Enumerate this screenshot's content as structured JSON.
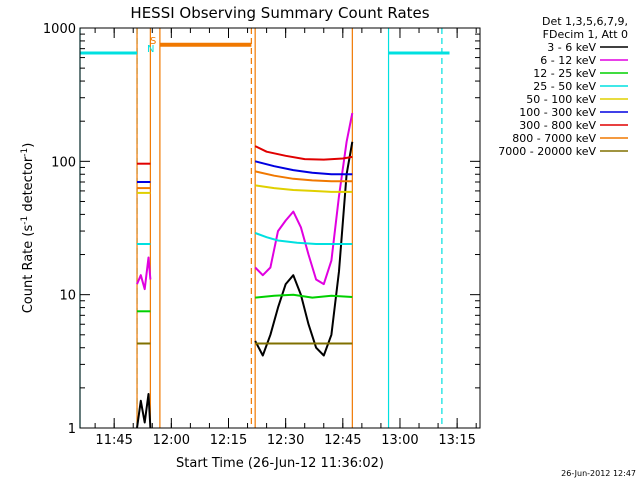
{
  "chart_data": {
    "type": "line",
    "title": "HESSI Observing Summary Count Rates",
    "xlabel": "Start Time (26-Jun-12 11:36:02)",
    "ylabel": "Count Rate (s⁻¹ detector⁻¹)",
    "ylabel_main": "Count Rate (s",
    "ylabel_sup1": "-1",
    "ylabel_mid": " detector",
    "ylabel_sup2": "-1",
    "ylabel_end": ")",
    "yscale": "log",
    "ylim": [
      1,
      1000
    ],
    "xlim": [
      "11:36:02",
      "13:21:00"
    ],
    "x_ticks": [
      "11:45",
      "12:00",
      "12:15",
      "12:30",
      "12:45",
      "13:00",
      "13:15"
    ],
    "y_ticks": [
      "1",
      "10",
      "100",
      "1000"
    ],
    "grid": false,
    "legend_header": [
      "Det 1,3,5,6,7,9,",
      "FDecim 1, Att 0"
    ],
    "legend_position": "right",
    "footer_date": "26-Jun-2012 12:47",
    "flag_labels": {
      "s": "S",
      "n": "N"
    },
    "series": [
      {
        "name": "3 - 6 keV",
        "color": "#000000",
        "segments": [
          {
            "x": [
              "11:51:00",
              "11:52:00",
              "11:53:00",
              "11:54:00",
              "11:54:30"
            ],
            "y": [
              1.0,
              1.6,
              1.1,
              1.8,
              1.0
            ]
          },
          {
            "x": [
              "12:22:00",
              "12:24:00",
              "12:26:00",
              "12:28:00",
              "12:30:00",
              "12:32:00",
              "12:34:00",
              "12:36:00",
              "12:38:00",
              "12:40:00",
              "12:42:00",
              "12:44:00",
              "12:46:00",
              "12:47:30"
            ],
            "y": [
              4.5,
              3.5,
              5.0,
              8.0,
              12.0,
              14.0,
              10.0,
              6.0,
              4.0,
              3.5,
              5.0,
              15.0,
              80.0,
              140.0
            ]
          }
        ]
      },
      {
        "name": "6 - 12 keV",
        "color": "#e000e0",
        "segments": [
          {
            "x": [
              "11:51:00",
              "11:52:00",
              "11:53:00",
              "11:54:00",
              "11:54:30"
            ],
            "y": [
              12.0,
              14.0,
              11.0,
              19.0,
              13.0
            ]
          },
          {
            "x": [
              "12:22:00",
              "12:24:00",
              "12:26:00",
              "12:28:00",
              "12:30:00",
              "12:32:00",
              "12:34:00",
              "12:36:00",
              "12:38:00",
              "12:40:00",
              "12:42:00",
              "12:44:00",
              "12:46:00",
              "12:47:30"
            ],
            "y": [
              16.0,
              14.0,
              16.0,
              30.0,
              36.0,
              42.0,
              32.0,
              20.0,
              13.0,
              12.0,
              18.0,
              55.0,
              140.0,
              230.0
            ]
          }
        ]
      },
      {
        "name": "12 - 25 keV",
        "color": "#00d000",
        "segments": [
          {
            "x": [
              "11:51:00",
              "11:52:30",
              "11:54:30"
            ],
            "y": [
              7.5,
              7.5,
              7.5
            ]
          },
          {
            "x": [
              "12:22:00",
              "12:27:00",
              "12:32:00",
              "12:37:00",
              "12:42:00",
              "12:47:30"
            ],
            "y": [
              9.5,
              9.8,
              10.0,
              9.5,
              9.8,
              9.6
            ]
          }
        ]
      },
      {
        "name": "25 - 50 keV",
        "color": "#00e0e0",
        "segments": [
          {
            "x": [
              "11:51:00",
              "11:52:30",
              "11:54:30"
            ],
            "y": [
              24.0,
              24.0,
              24.0
            ]
          },
          {
            "x": [
              "12:22:00",
              "12:25:00",
              "12:28:00",
              "12:33:00",
              "12:38:00",
              "12:43:00",
              "12:47:30"
            ],
            "y": [
              29.0,
              27.0,
              25.5,
              24.5,
              24.0,
              24.0,
              24.0
            ]
          }
        ]
      },
      {
        "name": "50 - 100 keV",
        "color": "#e0d000",
        "segments": [
          {
            "x": [
              "11:51:00",
              "11:52:30",
              "11:54:30"
            ],
            "y": [
              58.0,
              58.0,
              58.0
            ]
          },
          {
            "x": [
              "12:22:00",
              "12:27:00",
              "12:32:00",
              "12:37:00",
              "12:42:00",
              "12:47:30"
            ],
            "y": [
              66.0,
              63.0,
              61.0,
              60.0,
              59.0,
              59.0
            ]
          }
        ]
      },
      {
        "name": "100 - 300 keV",
        "color": "#0000e0",
        "segments": [
          {
            "x": [
              "11:51:00",
              "11:52:30",
              "11:54:30"
            ],
            "y": [
              70.0,
              70.0,
              70.0
            ]
          },
          {
            "x": [
              "12:22:00",
              "12:27:00",
              "12:32:00",
              "12:37:00",
              "12:42:00",
              "12:47:30"
            ],
            "y": [
              100.0,
              92.0,
              86.0,
              82.0,
              80.0,
              80.0
            ]
          }
        ]
      },
      {
        "name": "300 - 800 keV",
        "color": "#e00000",
        "segments": [
          {
            "x": [
              "11:51:00",
              "11:52:30",
              "11:54:30"
            ],
            "y": [
              96.0,
              96.0,
              96.0
            ]
          },
          {
            "x": [
              "12:22:00",
              "12:25:00",
              "12:30:00",
              "12:35:00",
              "12:40:00",
              "12:45:00",
              "12:47:30"
            ],
            "y": [
              130.0,
              118.0,
              110.0,
              104.0,
              103.0,
              105.0,
              108.0
            ]
          }
        ]
      },
      {
        "name": "800 - 7000 keV",
        "color": "#f07800",
        "segments": [
          {
            "x": [
              "11:51:00",
              "11:52:30",
              "11:54:30"
            ],
            "y": [
              63.0,
              63.0,
              63.0
            ]
          },
          {
            "x": [
              "12:22:00",
              "12:27:00",
              "12:32:00",
              "12:37:00",
              "12:42:00",
              "12:47:30"
            ],
            "y": [
              84.0,
              78.0,
              74.0,
              72.0,
              71.0,
              71.0
            ]
          },
          {
            "x": [
              "11:57:00",
              "12:21:00"
            ],
            "y": [
              750.0,
              750.0
            ]
          }
        ]
      },
      {
        "name": "7000 - 20000 keV",
        "color": "#807000",
        "segments": [
          {
            "x": [
              "11:51:00",
              "11:52:30",
              "11:54:30"
            ],
            "y": [
              4.3,
              4.3,
              4.3
            ]
          },
          {
            "x": [
              "12:22:00",
              "12:27:00",
              "12:32:00",
              "12:37:00",
              "12:42:00",
              "12:47:30"
            ],
            "y": [
              4.3,
              4.3,
              4.3,
              4.3,
              4.3,
              4.3
            ]
          }
        ]
      }
    ],
    "markers": [
      {
        "x": "11:36:02",
        "color": "#00e0e0",
        "style": "solid"
      },
      {
        "x": "11:51:00",
        "color": "#00e0e0",
        "style": "dashed"
      },
      {
        "x": "11:51:00",
        "color": "#f07800",
        "style": "solid"
      },
      {
        "x": "11:54:30",
        "color": "#f07800",
        "style": "solid"
      },
      {
        "x": "11:57:00",
        "color": "#f07800",
        "style": "solid"
      },
      {
        "x": "12:21:00",
        "color": "#f07800",
        "style": "dashed"
      },
      {
        "x": "12:22:00",
        "color": "#f07800",
        "style": "solid"
      },
      {
        "x": "12:47:30",
        "color": "#f07800",
        "style": "solid"
      },
      {
        "x": "12:57:00",
        "color": "#00e0e0",
        "style": "solid"
      },
      {
        "x": "13:11:00",
        "color": "#00e0e0",
        "style": "dashed"
      }
    ],
    "flag_bars": [
      {
        "x": [
          "11:36:02",
          "11:51:00"
        ],
        "y": 650,
        "color": "#00e0e0"
      },
      {
        "x": [
          "12:57:00",
          "13:13:00"
        ],
        "y": 650,
        "color": "#00e0e0"
      }
    ]
  }
}
